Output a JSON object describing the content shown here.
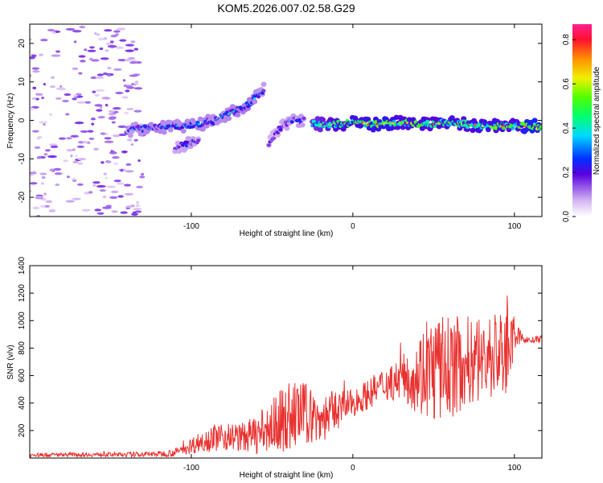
{
  "chart_data": [
    {
      "type": "heatmap",
      "title": "KOM5.2026.007.02.58.G29",
      "xlabel": "Height of straight line (km)",
      "ylabel": "Frequency (Hz)",
      "xlim": [
        -200,
        117
      ],
      "ylim": [
        -25,
        25
      ],
      "xticks": [
        -100,
        0,
        100
      ],
      "xtick_labels": [
        "-100",
        "0",
        "100"
      ],
      "yticks": [
        -20,
        -10,
        0,
        10,
        20
      ],
      "ytick_labels": [
        "-20",
        "-10",
        "0",
        "10",
        "20"
      ],
      "colorbar": {
        "label": "Normalized spectral amplitude",
        "range": [
          0,
          0.87
        ],
        "ticks": [
          0.0,
          0.2,
          0.4,
          0.6,
          0.8
        ],
        "tick_labels": [
          "0.0",
          "0.2",
          "0.4",
          "0.6",
          "0.8"
        ]
      },
      "ridge": {
        "segments": [
          {
            "x": [
              -140,
              -125,
              -110,
              -95,
              -85,
              -75,
              -65,
              -55
            ],
            "freq": [
              -2.5,
              -2,
              -1.5,
              -1,
              0,
              2,
              4,
              8
            ],
            "amplitude": [
              0.25,
              0.3,
              0.28,
              0.3,
              0.28,
              0.3,
              0.32,
              0.25
            ]
          },
          {
            "x": [
              -110,
              -100,
              -95
            ],
            "freq": [
              -7,
              -6,
              -5
            ],
            "amplitude": [
              0.22,
              0.25,
              0.22
            ]
          },
          {
            "x": [
              -52,
              -45,
              -38,
              -30
            ],
            "freq": [
              -6,
              -2,
              0,
              0
            ],
            "amplitude": [
              0.2,
              0.22,
              0.25,
              0.25
            ]
          },
          {
            "x": [
              -25,
              -10,
              0,
              10,
              20,
              30,
              40,
              50,
              60,
              70,
              80,
              90,
              100,
              110,
              117
            ],
            "freq": [
              -1,
              -1,
              -0.5,
              -1,
              -1,
              -0.5,
              -1,
              -1,
              -0.5,
              -1,
              -1.5,
              -1.5,
              -1.5,
              -1.5,
              -1.5
            ],
            "amplitude": [
              0.45,
              0.55,
              0.6,
              0.6,
              0.65,
              0.55,
              0.6,
              0.55,
              0.6,
              0.55,
              0.6,
              0.6,
              0.55,
              0.7,
              0.65
            ]
          }
        ]
      },
      "noise_region": {
        "x": [
          -200,
          -130
        ],
        "freq": [
          -25,
          25
        ],
        "amplitude": 0.05
      }
    },
    {
      "type": "line",
      "xlabel": "Height of straight line (km)",
      "ylabel": "SNR (v/v)",
      "xlim": [
        -200,
        117
      ],
      "ylim": [
        0,
        1400
      ],
      "xticks": [
        -100,
        0,
        100
      ],
      "xtick_labels": [
        "-100",
        "0",
        "100"
      ],
      "yticks": [
        200,
        400,
        600,
        800,
        1000,
        1200,
        1400
      ],
      "ytick_labels": [
        "200",
        "400",
        "600",
        "800",
        "1000",
        "1200",
        "1400"
      ],
      "series": [
        {
          "name": "SNR",
          "color": "#e8312f",
          "x": [
            -200,
            -180,
            -160,
            -140,
            -120,
            -110,
            -100,
            -90,
            -80,
            -70,
            -60,
            -50,
            -40,
            -30,
            -20,
            -10,
            0,
            10,
            20,
            30,
            40,
            50,
            60,
            70,
            80,
            90,
            95,
            100,
            105,
            110,
            117
          ],
          "y": [
            20,
            25,
            25,
            25,
            30,
            40,
            90,
            140,
            160,
            150,
            170,
            230,
            300,
            330,
            280,
            350,
            400,
            470,
            540,
            580,
            620,
            640,
            660,
            700,
            720,
            760,
            780,
            900,
            870,
            855,
            865
          ],
          "spread": [
            15,
            15,
            15,
            18,
            20,
            30,
            60,
            90,
            110,
            100,
            140,
            200,
            260,
            230,
            180,
            150,
            100,
            110,
            130,
            150,
            300,
            400,
            380,
            340,
            320,
            340,
            420,
            120,
            30,
            25,
            25
          ]
        }
      ]
    }
  ]
}
